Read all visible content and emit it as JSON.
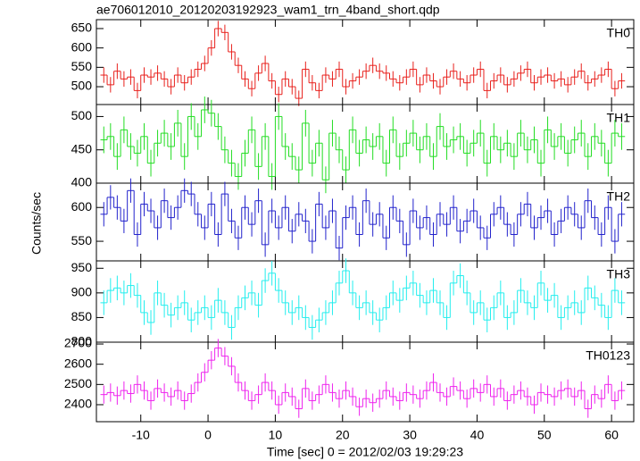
{
  "chart_data": {
    "type": "line",
    "title": "ae706012010_20120203192923_wam1_trn_4band_short.qdp",
    "x_label": "Time [sec] 0 = 2012/02/03 19:29:23",
    "y_label": "Counts/sec",
    "xlim": [
      -16.6,
      63.3
    ],
    "xticks": [
      -10,
      0,
      10,
      20,
      30,
      40,
      50,
      60
    ],
    "x": [
      -15.5,
      -14.5,
      -13.5,
      -12.5,
      -11.5,
      -10.5,
      -9.5,
      -8.5,
      -7.5,
      -6.5,
      -5.5,
      -4.5,
      -3.5,
      -2.5,
      -1.5,
      -0.5,
      0.5,
      1.5,
      2.5,
      3.5,
      4.5,
      5.5,
      6.5,
      7.5,
      8.5,
      9.5,
      10.5,
      11.5,
      12.5,
      13.5,
      14.5,
      15.5,
      16.5,
      17.5,
      18.5,
      19.5,
      20.5,
      21.5,
      22.5,
      23.5,
      24.5,
      25.5,
      26.5,
      27.5,
      28.5,
      29.5,
      30.5,
      31.5,
      32.5,
      33.5,
      34.5,
      35.5,
      36.5,
      37.5,
      38.5,
      39.5,
      40.5,
      41.5,
      42.5,
      43.5,
      44.5,
      45.5,
      46.5,
      47.5,
      48.5,
      49.5,
      50.5,
      51.5,
      52.5,
      53.5,
      54.5,
      55.5,
      56.5,
      57.5,
      58.5,
      59.5,
      60.5,
      61.5
    ],
    "panels": [
      {
        "name": "TH0",
        "color": "#e8201c",
        "ylim": [
          454,
          673
        ],
        "yticks": [
          500,
          550,
          600,
          650
        ],
        "error": 20,
        "values": [
          530,
          505,
          540,
          520,
          525,
          490,
          530,
          525,
          535,
          520,
          500,
          530,
          510,
          525,
          545,
          560,
          600,
          650,
          640,
          590,
          555,
          520,
          495,
          535,
          560,
          515,
          480,
          520,
          500,
          470,
          545,
          510,
          490,
          530,
          520,
          545,
          500,
          515,
          525,
          540,
          555,
          540,
          535,
          520,
          510,
          525,
          545,
          505,
          530,
          515,
          500,
          525,
          540,
          520,
          510,
          530,
          545,
          490,
          515,
          530,
          505,
          520,
          535,
          545,
          510,
          525,
          530,
          515,
          520,
          505,
          525,
          540,
          510,
          520,
          530,
          545,
          495,
          515
        ]
      },
      {
        "name": "TH1",
        "color": "#22dd22",
        "ylim": [
          400,
          518
        ],
        "yticks": [
          400,
          450,
          500
        ],
        "error": 20,
        "values": [
          465,
          470,
          440,
          480,
          455,
          445,
          470,
          430,
          460,
          475,
          455,
          490,
          440,
          500,
          470,
          510,
          505,
          485,
          450,
          430,
          410,
          445,
          480,
          425,
          470,
          410,
          500,
          455,
          440,
          420,
          490,
          430,
          460,
          405,
          475,
          450,
          420,
          480,
          445,
          465,
          455,
          470,
          430,
          480,
          440,
          460,
          475,
          450,
          470,
          440,
          485,
          455,
          465,
          470,
          445,
          460,
          475,
          430,
          470,
          450,
          460,
          440,
          475,
          450,
          465,
          430,
          480,
          455,
          470,
          445,
          465,
          475,
          440,
          470,
          460,
          430,
          475,
          470
        ]
      },
      {
        "name": "TH2",
        "color": "#2222cc",
        "ylim": [
          521,
          636
        ],
        "yticks": [
          550,
          600
        ],
        "error": 18,
        "values": [
          590,
          615,
          600,
          580,
          625,
          560,
          605,
          595,
          570,
          610,
          585,
          600,
          625,
          620,
          590,
          570,
          605,
          560,
          620,
          580,
          555,
          600,
          575,
          610,
          545,
          595,
          570,
          600,
          565,
          590,
          580,
          550,
          605,
          570,
          595,
          540,
          585,
          600,
          560,
          610,
          575,
          590,
          555,
          600,
          580,
          545,
          595,
          570,
          585,
          560,
          590,
          575,
          600,
          565,
          580,
          595,
          570,
          555,
          590,
          600,
          575,
          560,
          590,
          605,
          570,
          585,
          595,
          560,
          580,
          600,
          590,
          570,
          610,
          585,
          560,
          600,
          550,
          590
        ]
      },
      {
        "name": "TH3",
        "color": "#22eeee",
        "ylim": [
          800,
          965
        ],
        "yticks": [
          800,
          850,
          900,
          950
        ],
        "error": 25,
        "values": [
          880,
          905,
          910,
          900,
          915,
          895,
          860,
          840,
          900,
          875,
          855,
          870,
          880,
          845,
          860,
          870,
          850,
          885,
          860,
          830,
          870,
          890,
          900,
          875,
          925,
          940,
          905,
          880,
          860,
          870,
          850,
          830,
          845,
          860,
          880,
          920,
          945,
          900,
          870,
          880,
          860,
          845,
          870,
          900,
          885,
          910,
          920,
          895,
          880,
          905,
          880,
          850,
          920,
          935,
          900,
          860,
          880,
          845,
          870,
          900,
          850,
          860,
          905,
          880,
          870,
          920,
          885,
          895,
          850,
          870,
          880,
          860,
          910,
          890,
          875,
          850,
          905,
          880
        ]
      },
      {
        "name": "TH0123",
        "color": "#ee22ee",
        "ylim": [
          2316,
          2709
        ],
        "yticks": [
          2400,
          2500,
          2600,
          2700
        ],
        "error": 45,
        "values": [
          2450,
          2460,
          2445,
          2470,
          2455,
          2500,
          2470,
          2420,
          2480,
          2460,
          2440,
          2470,
          2420,
          2455,
          2510,
          2560,
          2620,
          2680,
          2640,
          2590,
          2510,
          2470,
          2420,
          2450,
          2510,
          2470,
          2400,
          2460,
          2440,
          2380,
          2480,
          2420,
          2450,
          2500,
          2460,
          2430,
          2470,
          2440,
          2390,
          2430,
          2410,
          2430,
          2470,
          2440,
          2420,
          2460,
          2450,
          2430,
          2470,
          2510,
          2460,
          2440,
          2490,
          2470,
          2430,
          2480,
          2460,
          2500,
          2440,
          2480,
          2420,
          2450,
          2470,
          2440,
          2400,
          2460,
          2450,
          2440,
          2470,
          2480,
          2440,
          2470,
          2380,
          2450,
          2430,
          2500,
          2420,
          2470
        ]
      }
    ]
  }
}
